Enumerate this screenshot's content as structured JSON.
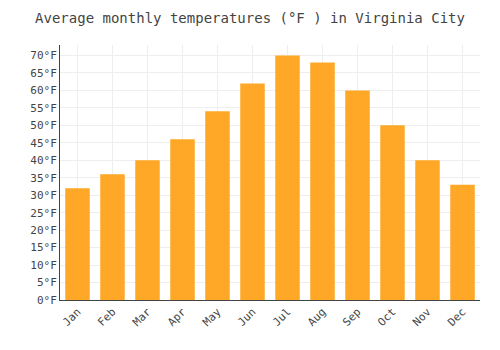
{
  "chart_data": {
    "type": "bar",
    "title": "Average monthly temperatures (°F ) in Virginia City",
    "categories": [
      "Jan",
      "Feb",
      "Mar",
      "Apr",
      "May",
      "Jun",
      "Jul",
      "Aug",
      "Sep",
      "Oct",
      "Nov",
      "Dec"
    ],
    "values": [
      32,
      36,
      40,
      46,
      54,
      62,
      70,
      68,
      60,
      50,
      40,
      33
    ],
    "color": "#FFA726",
    "ylim": [
      0,
      73
    ],
    "yticks": [
      {
        "value": 0,
        "label": "0°F"
      },
      {
        "value": 5,
        "label": "5°F"
      },
      {
        "value": 10,
        "label": "10°F"
      },
      {
        "value": 15,
        "label": "15°F"
      },
      {
        "value": 20,
        "label": "20°F"
      },
      {
        "value": 25,
        "label": "25°F"
      },
      {
        "value": 30,
        "label": "30°F"
      },
      {
        "value": 35,
        "label": "35°F"
      },
      {
        "value": 40,
        "label": "40°F"
      },
      {
        "value": 45,
        "label": "45°F"
      },
      {
        "value": 50,
        "label": "50°F"
      },
      {
        "value": 55,
        "label": "55°F"
      },
      {
        "value": 60,
        "label": "60°F"
      },
      {
        "value": 65,
        "label": "65°F"
      },
      {
        "value": 70,
        "label": "70°F"
      }
    ],
    "grid": true
  }
}
